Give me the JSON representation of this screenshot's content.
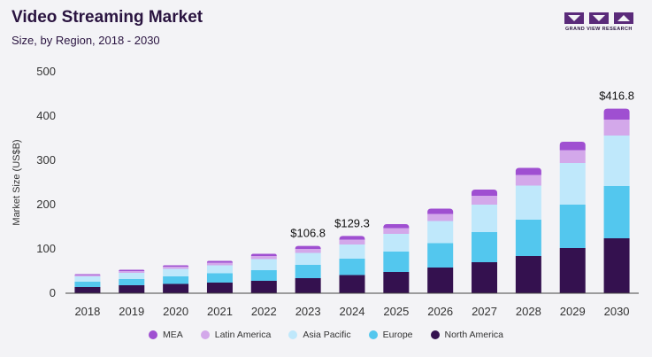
{
  "header": {
    "title": "Video Streaming Market",
    "subtitle": "Size, by Region, 2018 - 2030",
    "logo_text": "GRAND VIEW RESEARCH"
  },
  "chart_data": {
    "type": "bar",
    "stacked": true,
    "categories": [
      "2018",
      "2019",
      "2020",
      "2021",
      "2022",
      "2023",
      "2024",
      "2025",
      "2026",
      "2027",
      "2028",
      "2029",
      "2030"
    ],
    "ylabel": "Market Size (US$B)",
    "ylim": [
      0,
      500
    ],
    "yticks": [
      0,
      100,
      200,
      300,
      400,
      500
    ],
    "grid": false,
    "legend_position": "bottom",
    "series": [
      {
        "name": "North America",
        "color": "#34114f",
        "values": [
          14,
          18,
          21,
          24,
          28,
          34,
          41,
          48,
          58,
          70,
          84,
          102,
          124
        ]
      },
      {
        "name": "Europe",
        "color": "#53c7ee",
        "values": [
          12,
          14,
          17,
          21,
          24,
          30,
          37,
          46,
          55,
          68,
          82,
          98,
          118
        ]
      },
      {
        "name": "Asia Pacific",
        "color": "#bfe8fb",
        "values": [
          12,
          14,
          17,
          18,
          25,
          27,
          32,
          40,
          50,
          62,
          77,
          94,
          114
        ]
      },
      {
        "name": "Latin America",
        "color": "#d3a8ea",
        "values": [
          3,
          4,
          5,
          6,
          7,
          9,
          11,
          13,
          16,
          20,
          24,
          29,
          36
        ]
      },
      {
        "name": "MEA",
        "color": "#9f4fd1",
        "values": [
          2,
          3,
          3,
          4,
          5,
          6.8,
          8.3,
          9,
          12,
          14,
          16,
          19,
          24.8
        ]
      }
    ],
    "annotations": [
      {
        "category": "2023",
        "label": "$106.8"
      },
      {
        "category": "2024",
        "label": "$129.3"
      },
      {
        "category": "2030",
        "label": "$416.8"
      }
    ],
    "legend_order": [
      "MEA",
      "Latin America",
      "Asia Pacific",
      "Europe",
      "North America"
    ]
  }
}
